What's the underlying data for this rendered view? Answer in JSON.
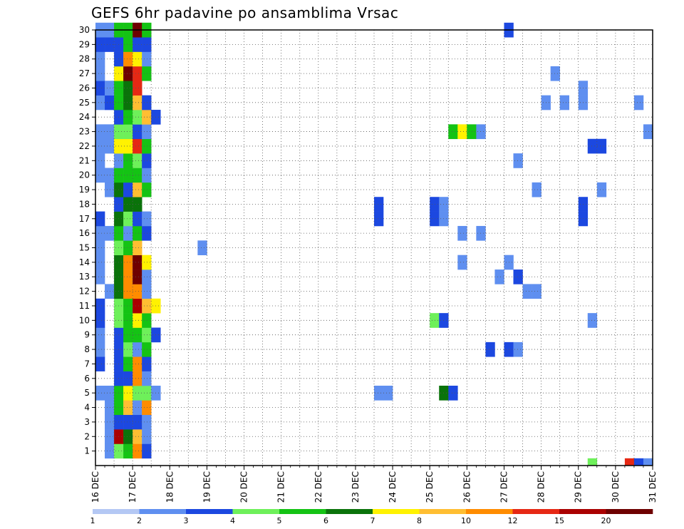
{
  "chart_data": {
    "type": "heatmap",
    "title": "GEFS 6hr padavine po ansamblima Vrsac",
    "xlabel": "",
    "ylabel": "",
    "x_ticks": [
      "16 DEC",
      "17 DEC",
      "18 DEC",
      "19 DEC",
      "20 DEC",
      "21 DEC",
      "22 DEC",
      "23 DEC",
      "24 DEC",
      "25 DEC",
      "26 DEC",
      "27 DEC",
      "28 DEC",
      "29 DEC",
      "30 DEC",
      "31 DEC"
    ],
    "x_range_days": [
      16,
      31
    ],
    "y_ticks": [
      "1",
      "2",
      "3",
      "4",
      "5",
      "6",
      "7",
      "8",
      "9",
      "10",
      "11",
      "12",
      "13",
      "14",
      "15",
      "16",
      "17",
      "18",
      "19",
      "20",
      "21",
      "22",
      "23",
      "24",
      "25",
      "26",
      "27",
      "28",
      "29",
      "30"
    ],
    "y_range": [
      0,
      30
    ],
    "grid": true,
    "legend": {
      "placement": "bottom",
      "labels": [
        "1",
        "2",
        "3",
        "4",
        "5",
        "6",
        "7",
        "8",
        "10",
        "12",
        "15",
        "20"
      ],
      "colors": [
        "#b4c8f4",
        "#5f8ff0",
        "#1c48e0",
        "#6ef05a",
        "#14c314",
        "#0a730a",
        "#fff200",
        "#ffbe32",
        "#ff8c00",
        "#e62814",
        "#aa0000",
        "#6e0000"
      ]
    },
    "cells": [
      [
        1,
        16.25,
        1
      ],
      [
        1,
        16.5,
        3
      ],
      [
        1,
        16.75,
        4
      ],
      [
        1,
        17.0,
        8
      ],
      [
        1,
        17.25,
        2
      ],
      [
        2,
        16.25,
        1
      ],
      [
        2,
        16.5,
        10
      ],
      [
        2,
        16.75,
        5
      ],
      [
        2,
        17.0,
        7
      ],
      [
        2,
        17.25,
        1
      ],
      [
        3,
        16.25,
        1
      ],
      [
        3,
        16.5,
        2
      ],
      [
        3,
        16.75,
        2
      ],
      [
        3,
        17.0,
        2
      ],
      [
        3,
        17.25,
        1
      ],
      [
        4,
        16.25,
        1
      ],
      [
        4,
        16.5,
        4
      ],
      [
        4,
        16.75,
        7
      ],
      [
        4,
        17.0,
        1
      ],
      [
        4,
        17.25,
        8
      ],
      [
        5,
        16.0,
        1
      ],
      [
        5,
        16.25,
        1
      ],
      [
        5,
        16.5,
        4
      ],
      [
        5,
        16.75,
        6
      ],
      [
        5,
        17.0,
        3
      ],
      [
        5,
        17.25,
        3
      ],
      [
        5,
        17.5,
        1
      ],
      [
        5,
        23.5,
        1
      ],
      [
        5,
        23.75,
        1
      ],
      [
        5,
        25.25,
        5
      ],
      [
        5,
        25.5,
        2
      ],
      [
        6,
        16.5,
        2
      ],
      [
        6,
        16.75,
        2
      ],
      [
        6,
        17.0,
        8
      ],
      [
        6,
        17.25,
        1
      ],
      [
        7,
        16.0,
        2
      ],
      [
        7,
        16.5,
        2
      ],
      [
        7,
        16.75,
        4
      ],
      [
        7,
        17.0,
        8
      ],
      [
        7,
        17.25,
        2
      ],
      [
        8,
        16.0,
        1
      ],
      [
        8,
        16.5,
        2
      ],
      [
        8,
        16.75,
        3
      ],
      [
        8,
        17.0,
        1
      ],
      [
        8,
        17.25,
        4
      ],
      [
        8,
        26.5,
        2
      ],
      [
        8,
        27.0,
        2
      ],
      [
        8,
        27.25,
        1
      ],
      [
        9,
        16.0,
        1
      ],
      [
        9,
        16.5,
        2
      ],
      [
        9,
        16.75,
        4
      ],
      [
        9,
        17.0,
        4
      ],
      [
        9,
        17.25,
        3
      ],
      [
        9,
        17.5,
        2
      ],
      [
        10,
        16.0,
        2
      ],
      [
        10,
        16.5,
        3
      ],
      [
        10,
        16.75,
        4
      ],
      [
        10,
        17.0,
        6
      ],
      [
        10,
        17.25,
        4
      ],
      [
        10,
        25.0,
        3
      ],
      [
        10,
        25.25,
        2
      ],
      [
        10,
        29.25,
        1
      ],
      [
        11,
        16.0,
        2
      ],
      [
        11,
        16.5,
        3
      ],
      [
        11,
        16.75,
        4
      ],
      [
        11,
        17.0,
        10
      ],
      [
        11,
        17.25,
        7
      ],
      [
        11,
        17.5,
        6
      ],
      [
        12,
        16.25,
        1
      ],
      [
        12,
        16.5,
        5
      ],
      [
        12,
        16.75,
        8
      ],
      [
        12,
        17.0,
        8
      ],
      [
        12,
        17.25,
        1
      ],
      [
        12,
        27.5,
        1
      ],
      [
        12,
        27.75,
        1
      ],
      [
        13,
        16.0,
        1
      ],
      [
        13,
        16.5,
        5
      ],
      [
        13,
        16.75,
        8
      ],
      [
        13,
        17.0,
        11
      ],
      [
        13,
        17.25,
        1
      ],
      [
        13,
        26.75,
        1
      ],
      [
        13,
        27.25,
        2
      ],
      [
        14,
        16.0,
        1
      ],
      [
        14,
        16.5,
        5
      ],
      [
        14,
        16.75,
        8
      ],
      [
        14,
        17.0,
        11
      ],
      [
        14,
        17.25,
        6
      ],
      [
        14,
        25.75,
        1
      ],
      [
        14,
        27.0,
        1
      ],
      [
        15,
        16.0,
        1
      ],
      [
        15,
        16.5,
        3
      ],
      [
        15,
        16.75,
        4
      ],
      [
        15,
        17.0,
        7
      ],
      [
        15,
        18.75,
        1
      ],
      [
        16,
        16.0,
        1
      ],
      [
        16,
        16.25,
        1
      ],
      [
        16,
        16.5,
        4
      ],
      [
        16,
        16.75,
        1
      ],
      [
        16,
        17.0,
        4
      ],
      [
        16,
        17.25,
        2
      ],
      [
        16,
        25.75,
        1
      ],
      [
        16,
        26.25,
        1
      ],
      [
        17,
        16.0,
        2
      ],
      [
        17,
        16.5,
        5
      ],
      [
        17,
        16.75,
        3
      ],
      [
        17,
        17.0,
        2
      ],
      [
        17,
        17.25,
        1
      ],
      [
        17,
        23.5,
        2
      ],
      [
        17,
        25.0,
        2
      ],
      [
        17,
        25.25,
        1
      ],
      [
        17,
        29.0,
        2
      ],
      [
        18,
        16.5,
        2
      ],
      [
        18,
        16.75,
        5
      ],
      [
        18,
        17.0,
        5
      ],
      [
        18,
        23.5,
        2
      ],
      [
        18,
        25.0,
        2
      ],
      [
        18,
        25.25,
        1
      ],
      [
        18,
        29.0,
        2
      ],
      [
        19,
        16.25,
        1
      ],
      [
        19,
        16.5,
        5
      ],
      [
        19,
        16.75,
        2
      ],
      [
        19,
        17.0,
        7
      ],
      [
        19,
        17.25,
        4
      ],
      [
        19,
        27.75,
        1
      ],
      [
        19,
        29.5,
        1
      ],
      [
        20,
        16.0,
        1
      ],
      [
        20,
        16.25,
        1
      ],
      [
        20,
        16.5,
        4
      ],
      [
        20,
        16.75,
        4
      ],
      [
        20,
        17.0,
        4
      ],
      [
        20,
        17.25,
        1
      ],
      [
        21,
        16.0,
        1
      ],
      [
        21,
        16.5,
        1
      ],
      [
        21,
        16.75,
        4
      ],
      [
        21,
        17.0,
        3
      ],
      [
        21,
        17.25,
        2
      ],
      [
        21,
        27.25,
        1
      ],
      [
        22,
        16.0,
        1
      ],
      [
        22,
        16.25,
        1
      ],
      [
        22,
        16.5,
        6
      ],
      [
        22,
        16.75,
        6
      ],
      [
        22,
        17.0,
        9
      ],
      [
        22,
        17.25,
        4
      ],
      [
        22,
        29.25,
        2
      ],
      [
        22,
        29.5,
        2
      ],
      [
        23,
        16.0,
        1
      ],
      [
        23,
        16.25,
        1
      ],
      [
        23,
        16.5,
        3
      ],
      [
        23,
        16.75,
        3
      ],
      [
        23,
        17.0,
        2
      ],
      [
        23,
        17.25,
        1
      ],
      [
        23,
        25.5,
        4
      ],
      [
        23,
        25.75,
        6
      ],
      [
        23,
        26.0,
        4
      ],
      [
        23,
        26.25,
        1
      ],
      [
        23,
        30.75,
        1
      ],
      [
        24,
        16.5,
        2
      ],
      [
        24,
        16.75,
        4
      ],
      [
        24,
        17.0,
        3
      ],
      [
        24,
        17.25,
        7
      ],
      [
        24,
        17.5,
        2
      ],
      [
        25,
        16.0,
        1
      ],
      [
        25,
        16.25,
        2
      ],
      [
        25,
        16.5,
        4
      ],
      [
        25,
        16.75,
        5
      ],
      [
        25,
        17.0,
        7
      ],
      [
        25,
        17.25,
        2
      ],
      [
        25,
        28.0,
        1
      ],
      [
        25,
        28.5,
        1
      ],
      [
        25,
        29.0,
        1
      ],
      [
        25,
        30.5,
        1
      ],
      [
        26,
        16.0,
        2
      ],
      [
        26,
        16.25,
        1
      ],
      [
        26,
        16.5,
        4
      ],
      [
        26,
        16.75,
        5
      ],
      [
        26,
        17.0,
        9
      ],
      [
        26,
        29.0,
        1
      ],
      [
        27,
        16.0,
        1
      ],
      [
        27,
        16.5,
        6
      ],
      [
        27,
        16.75,
        11
      ],
      [
        27,
        17.0,
        9
      ],
      [
        27,
        17.25,
        4
      ],
      [
        27,
        28.25,
        1
      ],
      [
        28,
        16.0,
        1
      ],
      [
        28,
        16.5,
        2
      ],
      [
        28,
        16.75,
        8
      ],
      [
        28,
        17.0,
        6
      ],
      [
        28,
        17.25,
        1
      ],
      [
        29,
        16.0,
        2
      ],
      [
        29,
        16.25,
        2
      ],
      [
        29,
        16.5,
        2
      ],
      [
        29,
        16.75,
        4
      ],
      [
        29,
        17.0,
        2
      ],
      [
        29,
        17.25,
        2
      ],
      [
        30,
        16.0,
        1
      ],
      [
        30,
        16.25,
        1
      ],
      [
        30,
        16.5,
        4
      ],
      [
        30,
        16.75,
        4
      ],
      [
        30,
        17.0,
        11
      ],
      [
        30,
        17.25,
        4
      ],
      [
        30,
        27.0,
        2
      ],
      [
        0,
        29.25,
        3
      ],
      [
        0,
        30.25,
        9
      ],
      [
        0,
        30.5,
        2
      ],
      [
        0,
        30.75,
        1
      ]
    ]
  }
}
